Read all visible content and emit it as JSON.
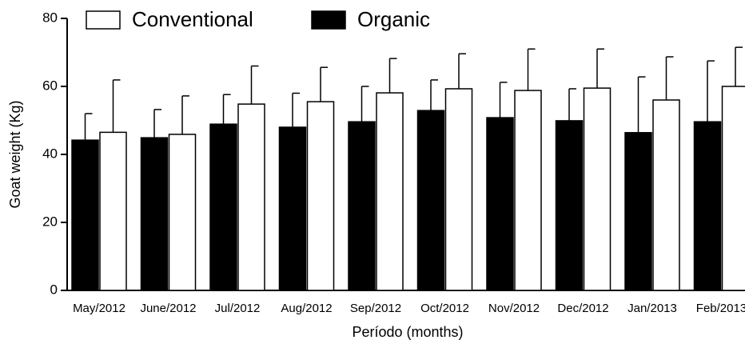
{
  "chart_data": {
    "type": "bar",
    "x_label": "Período (months)",
    "y_label": "Goat weight (Kg)",
    "categories": [
      "May/2012",
      "June/2012",
      "Jul/2012",
      "Aug/2012",
      "Sep/2012",
      "Oct/2012",
      "Nov/2012",
      "Dec/2012",
      "Jan/2013",
      "Feb/2013"
    ],
    "series": [
      {
        "name": "Conventional",
        "color": "#ffffff",
        "values": [
          46.5,
          45.9,
          54.8,
          55.5,
          58.1,
          59.3,
          58.8,
          59.5,
          56,
          60
        ],
        "errors": [
          15.4,
          11.3,
          11.2,
          10.1,
          10.1,
          10.3,
          12.2,
          11.5,
          12.7,
          11.5
        ]
      },
      {
        "name": "Organic",
        "color": "#000000",
        "values": [
          44.2,
          44.9,
          48.9,
          48,
          49.6,
          52.9,
          50.8,
          49.9,
          46.4,
          49.6
        ],
        "errors": [
          7.8,
          8.3,
          8.7,
          10,
          10.4,
          9,
          10.4,
          9.4,
          16.4,
          17.9
        ]
      }
    ],
    "ylim": [
      0,
      80
    ],
    "yticks": [
      0,
      20,
      40,
      60,
      80
    ],
    "legend": "top"
  }
}
